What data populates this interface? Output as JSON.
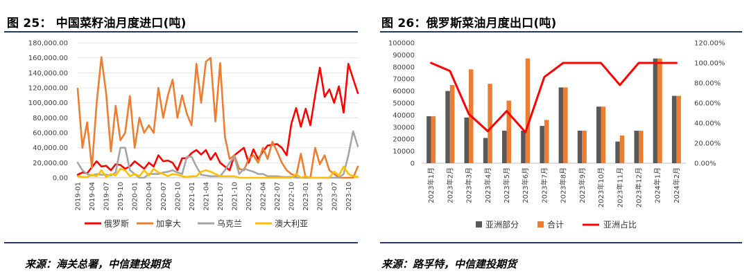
{
  "left_panel": {
    "title": "图 25： 中国菜籽油月度进口(吨)",
    "source": "来源：海关总署，中信建投期货"
  },
  "right_panel": {
    "title": "图 26：俄罗斯菜油月度出口(吨)",
    "source": "来源：路孚特，中信建投期货"
  },
  "colors": {
    "russia": "#ff0000",
    "canada": "#ed7d31",
    "ukraine": "#a5a5a5",
    "australia": "#ffc000",
    "asia_bar": "#595959",
    "total_bar": "#ed7d31",
    "share_line": "#ff0000",
    "rule": "#1f3864"
  },
  "chart_data": [
    {
      "type": "line",
      "ylim": [
        0,
        180000
      ],
      "yticks": [
        "0.00",
        "20,000.00",
        "40,000.00",
        "60,000.00",
        "80,000.00",
        "100,000.00",
        "120,000.00",
        "140,000.00",
        "160,000.00",
        "180,000.00"
      ],
      "x_tick_labels": [
        "2019-01",
        "2019-04",
        "2019-07",
        "2019-10",
        "2020-01",
        "2020-04",
        "2020-07",
        "2020-10",
        "2021-01",
        "2021-04",
        "2021-07",
        "2021-10",
        "2022-01",
        "2022-04",
        "2022-07",
        "2022-10",
        "2023-01",
        "2023-04",
        "2023-07",
        "2023-10"
      ],
      "x_start": "2019-01",
      "x_end": "2023-12",
      "series": [
        {
          "name": "俄罗斯",
          "color_key": "russia",
          "values": [
            4000,
            7000,
            6000,
            14000,
            22000,
            15000,
            16000,
            10000,
            18000,
            17000,
            12000,
            15000,
            22000,
            17000,
            12000,
            20000,
            15000,
            30000,
            22000,
            23000,
            20000,
            10000,
            26000,
            26000,
            33000,
            37000,
            31000,
            37000,
            24000,
            33000,
            20000,
            15000,
            10000,
            30000,
            35000,
            40000,
            20000,
            38000,
            25000,
            35000,
            43000,
            44000,
            45000,
            40000,
            30000,
            72000,
            93000,
            68000,
            92000,
            70000,
            110000,
            147000,
            108000,
            118000,
            100000,
            122000,
            87000,
            152000,
            132000,
            113000
          ]
        },
        {
          "name": "加拿大",
          "color_key": "canada",
          "values": [
            119000,
            40000,
            74000,
            13000,
            100000,
            161000,
            112000,
            35000,
            96000,
            50000,
            60000,
            109000,
            40000,
            80000,
            60000,
            70000,
            60000,
            120000,
            80000,
            110000,
            131000,
            80000,
            110000,
            85000,
            70000,
            152000,
            100000,
            155000,
            160000,
            75000,
            153000,
            55000,
            25000,
            30000,
            12000,
            10000,
            25000,
            30000,
            20000,
            40000,
            25000,
            48000,
            35000,
            20000,
            10000,
            5000,
            2000,
            32000,
            0,
            0,
            40000,
            18000,
            30000,
            10000,
            5000,
            0,
            0,
            0,
            0,
            15000
          ]
        },
        {
          "name": "乌克兰",
          "color_key": "ukraine",
          "values": [
            20000,
            10000,
            5000,
            3000,
            5000,
            4000,
            4000,
            3000,
            7000,
            40000,
            40000,
            10000,
            5000,
            0,
            0,
            5000,
            5000,
            5000,
            7000,
            8000,
            10000,
            7000,
            5000,
            28000,
            28000,
            15000,
            4000,
            3000,
            2000,
            2000,
            2000,
            10000,
            20000,
            28000,
            5000,
            12000,
            10000,
            8000,
            5000,
            5000,
            2000,
            2000,
            2000,
            1000,
            1000,
            1000,
            0,
            0,
            0,
            0,
            0,
            0,
            0,
            0,
            0,
            0,
            5000,
            30000,
            62000,
            42000
          ]
        },
        {
          "name": "澳大利亚",
          "color_key": "australia",
          "values": [
            2000,
            1000,
            1000,
            4000,
            2000,
            10000,
            1000,
            5000,
            3000,
            12000,
            10000,
            2000,
            5000,
            2000,
            10000,
            3000,
            12000,
            7000,
            5000,
            2000,
            5000,
            4000,
            2000,
            1000,
            2000,
            2000,
            8000,
            10000,
            8000,
            5000,
            2000,
            2000,
            2000,
            2000,
            0,
            0,
            0,
            0,
            0,
            0,
            0,
            0,
            0,
            0,
            0,
            0,
            5000,
            0,
            2000,
            0,
            0,
            0,
            0,
            0,
            8000,
            3000,
            15000,
            5000,
            2000,
            1000
          ]
        }
      ]
    },
    {
      "type": "bar",
      "categories": [
        "2023年1月",
        "2023年2月",
        "2023年3月",
        "2023年4月",
        "2023年5月",
        "2023年6月",
        "2023年7月",
        "2023年8月",
        "2023年9月",
        "2023年10月",
        "2023年11月",
        "2023年12月",
        "2024年1月",
        "2024年2月"
      ],
      "ylim": [
        0,
        100000
      ],
      "yticks": [
        "0",
        "10000",
        "20000",
        "30000",
        "40000",
        "50000",
        "60000",
        "70000",
        "80000",
        "90000",
        "100000"
      ],
      "y2lim": [
        0,
        120
      ],
      "y2ticks": [
        "0.00%",
        "20.00%",
        "40.00%",
        "60.00%",
        "80.00%",
        "100.00%",
        "120.00%"
      ],
      "series": [
        {
          "name": "亚洲部分",
          "kind": "bar",
          "color_key": "asia_bar",
          "values": [
            39000,
            60000,
            38000,
            21000,
            27000,
            27000,
            31000,
            63000,
            27000,
            47000,
            18000,
            27000,
            87000,
            56000
          ]
        },
        {
          "name": "合计",
          "kind": "bar",
          "color_key": "total_bar",
          "values": [
            39000,
            65000,
            78000,
            66000,
            52000,
            87000,
            36000,
            63000,
            27000,
            47000,
            23000,
            27000,
            87000,
            56000
          ]
        },
        {
          "name": "亚洲占比",
          "kind": "line",
          "axis": "right",
          "color_key": "share_line",
          "values": [
            100,
            92,
            49,
            32,
            52,
            31,
            86,
            100,
            100,
            100,
            78,
            100,
            100,
            100
          ]
        }
      ]
    }
  ]
}
